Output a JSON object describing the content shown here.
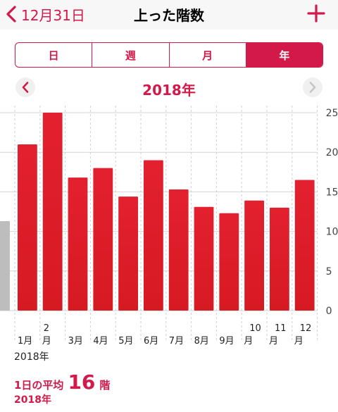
{
  "nav": {
    "back_label": "12月31日",
    "title": "上った階数",
    "add_icon": "plus-icon",
    "back_icon": "chevron-left-icon"
  },
  "segments": [
    {
      "label": "日",
      "active": false
    },
    {
      "label": "週",
      "active": false
    },
    {
      "label": "月",
      "active": false
    },
    {
      "label": "年",
      "active": true
    }
  ],
  "period": {
    "title": "2018年",
    "prev_icon": "chevron-left-icon",
    "next_icon": "chevron-right-icon"
  },
  "chart_data": {
    "type": "bar",
    "categories": [
      "1月",
      "2月",
      "3月",
      "4月",
      "5月",
      "6月",
      "7月",
      "8月",
      "9月",
      "10月",
      "11月",
      "12月"
    ],
    "values": [
      21,
      25,
      16.8,
      18,
      14.4,
      19,
      15.3,
      13.1,
      12.3,
      13.9,
      13,
      16.5
    ],
    "previous_value": 11.3,
    "yticks": [
      0,
      5,
      10,
      15,
      20,
      25
    ],
    "ylim": [
      0,
      25
    ],
    "grid": true,
    "bar_color": "#e3202f",
    "previous_bar_color": "#bdbdbd",
    "period_label": "2018年"
  },
  "summary": {
    "label": "1日の平均",
    "value": "16",
    "unit": "階",
    "period": "2018年"
  },
  "colors": {
    "accent": "#d3194a",
    "bar": "#e3202f"
  }
}
